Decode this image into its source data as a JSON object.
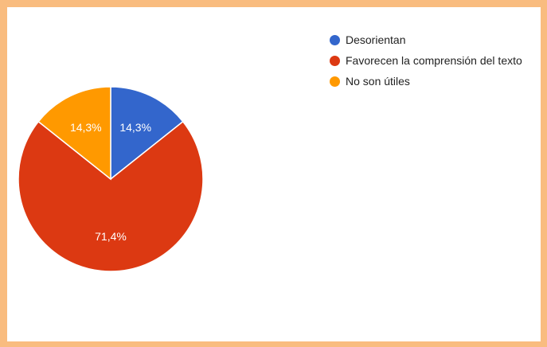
{
  "chart_data": {
    "type": "pie",
    "title": "",
    "start_angle_deg": 90,
    "direction": "clockwise",
    "slices": [
      {
        "label": "Desorientan",
        "value": 14.3,
        "display": "14,3%",
        "color": "#3366CC"
      },
      {
        "label": "Favorecen la comprensión del texto",
        "value": 71.4,
        "display": "71,4%",
        "color": "#DC3912"
      },
      {
        "label": "No son útiles",
        "value": 14.3,
        "display": "14,3%",
        "color": "#FF9900"
      }
    ],
    "legend_position": "right"
  }
}
